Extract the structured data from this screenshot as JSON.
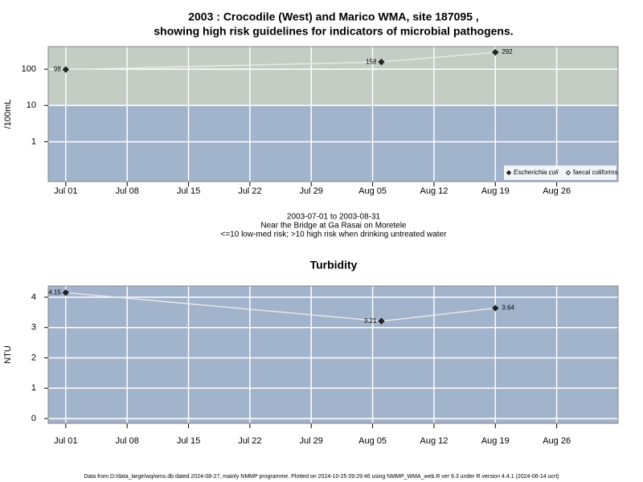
{
  "chart_data": [
    {
      "type": "line",
      "title": [
        "2003 : Crocodile (West) and Marico WMA, site 187095 ,",
        "showing high risk guidelines for indicators of microbial pathogens."
      ],
      "ylabel": "/100mL",
      "annotations": [
        "2003-07-01 to 2003-08-31",
        "Near the Bridge at Ga Rasai on Moretele",
        "<=10 low-med risk; >10 high risk when drinking untreated water"
      ],
      "x": [
        "2003-07-01",
        "2003-08-06",
        "2003-08-19"
      ],
      "series": [
        {
          "name": "Escherichia coli",
          "color": "#222222",
          "marker": "filled",
          "values": [
            98,
            158,
            292
          ]
        },
        {
          "name": "faecal coliforms",
          "color": "#222222",
          "marker": "open",
          "values": [
            null,
            null,
            null
          ]
        }
      ],
      "log_scale": true,
      "risk_threshold": 10,
      "band_colors": [
        "#a2b3cc",
        "#c3cdc3"
      ],
      "ylim": [
        0.08,
        420
      ],
      "yticks": [
        1,
        10,
        100
      ],
      "xlim": [
        "2003-06-29",
        "2003-09-02"
      ],
      "xticks": [
        {
          "value": "2003-07-01",
          "label": "Jul 01"
        },
        {
          "value": "2003-07-08",
          "label": "Jul 08"
        },
        {
          "value": "2003-07-15",
          "label": "Jul 15"
        },
        {
          "value": "2003-07-22",
          "label": "Jul 22"
        },
        {
          "value": "2003-07-29",
          "label": "Jul 29"
        },
        {
          "value": "2003-08-05",
          "label": "Aug 05"
        },
        {
          "value": "2003-08-12",
          "label": "Aug 12"
        },
        {
          "value": "2003-08-19",
          "label": "Aug 19"
        },
        {
          "value": "2003-08-26",
          "label": "Aug 26"
        }
      ],
      "grid": true,
      "legend": "bottom-right"
    },
    {
      "type": "line",
      "title": [
        "Turbidity"
      ],
      "ylabel": "NTU",
      "x": [
        "2003-07-01",
        "2003-08-06",
        "2003-08-19"
      ],
      "series": [
        {
          "color": "#222222",
          "marker": "filled",
          "values": [
            4.15,
            3.21,
            3.64
          ]
        }
      ],
      "log_scale": false,
      "band_colors": [
        "#a2b3cc"
      ],
      "ylim": [
        -0.16,
        4.37
      ],
      "yticks": [
        0,
        1,
        2,
        3,
        4
      ],
      "xlim": [
        "2003-06-29",
        "2003-09-02"
      ],
      "xticks": [
        {
          "value": "2003-07-01",
          "label": "Jul 01"
        },
        {
          "value": "2003-07-08",
          "label": "Jul 08"
        },
        {
          "value": "2003-07-15",
          "label": "Jul 15"
        },
        {
          "value": "2003-07-22",
          "label": "Jul 22"
        },
        {
          "value": "2003-07-29",
          "label": "Jul 29"
        },
        {
          "value": "2003-08-05",
          "label": "Aug 05"
        },
        {
          "value": "2003-08-12",
          "label": "Aug 12"
        },
        {
          "value": "2003-08-19",
          "label": "Aug 19"
        },
        {
          "value": "2003-08-26",
          "label": "Aug 26"
        }
      ],
      "grid": true
    }
  ],
  "footer": "Data from D:/data_large/wq/wms.db dated 2024-08-27, mainly NMMP programme. Plotted on 2024-10-25 09:29:46 using NMMP_WMA_web.R ver 9.3 under R version 4.4.1 (2024-06-14 ucrt)"
}
